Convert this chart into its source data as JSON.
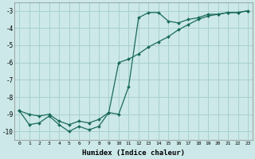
{
  "xlabel": "Humidex (Indice chaleur)",
  "xlim": [
    -0.5,
    23.5
  ],
  "ylim": [
    -10.5,
    -2.5
  ],
  "yticks": [
    -10,
    -9,
    -8,
    -7,
    -6,
    -5,
    -4,
    -3
  ],
  "xticks": [
    0,
    1,
    2,
    3,
    4,
    5,
    6,
    7,
    8,
    9,
    10,
    11,
    12,
    13,
    14,
    15,
    16,
    17,
    18,
    19,
    20,
    21,
    22,
    23
  ],
  "bg_color": "#cce8e8",
  "grid_color": "#a8d0d0",
  "line_color": "#1a6b5a",
  "line1_x": [
    0,
    1,
    2,
    3,
    4,
    5,
    6,
    7,
    8,
    9,
    10,
    11,
    12,
    13,
    14,
    15,
    16,
    17,
    18,
    19,
    20,
    21,
    22,
    23
  ],
  "line1_y": [
    -8.8,
    -9.6,
    -9.5,
    -9.1,
    -9.6,
    -10.0,
    -9.7,
    -9.9,
    -9.7,
    -8.9,
    -9.0,
    -7.4,
    -3.4,
    -3.1,
    -3.1,
    -3.6,
    -3.7,
    -3.5,
    -3.4,
    -3.2,
    -3.2,
    -3.1,
    -3.1,
    -3.0
  ],
  "line2_x": [
    0,
    1,
    2,
    3,
    4,
    5,
    6,
    7,
    8,
    9,
    10,
    11,
    12,
    13,
    14,
    15,
    16,
    17,
    18,
    19,
    20,
    21,
    22,
    23
  ],
  "line2_y": [
    -8.8,
    -9.0,
    -9.1,
    -9.0,
    -9.4,
    -9.6,
    -9.4,
    -9.5,
    -9.3,
    -8.9,
    -6.0,
    -5.8,
    -5.5,
    -5.1,
    -4.8,
    -4.5,
    -4.1,
    -3.8,
    -3.5,
    -3.3,
    -3.2,
    -3.1,
    -3.1,
    -3.0
  ]
}
